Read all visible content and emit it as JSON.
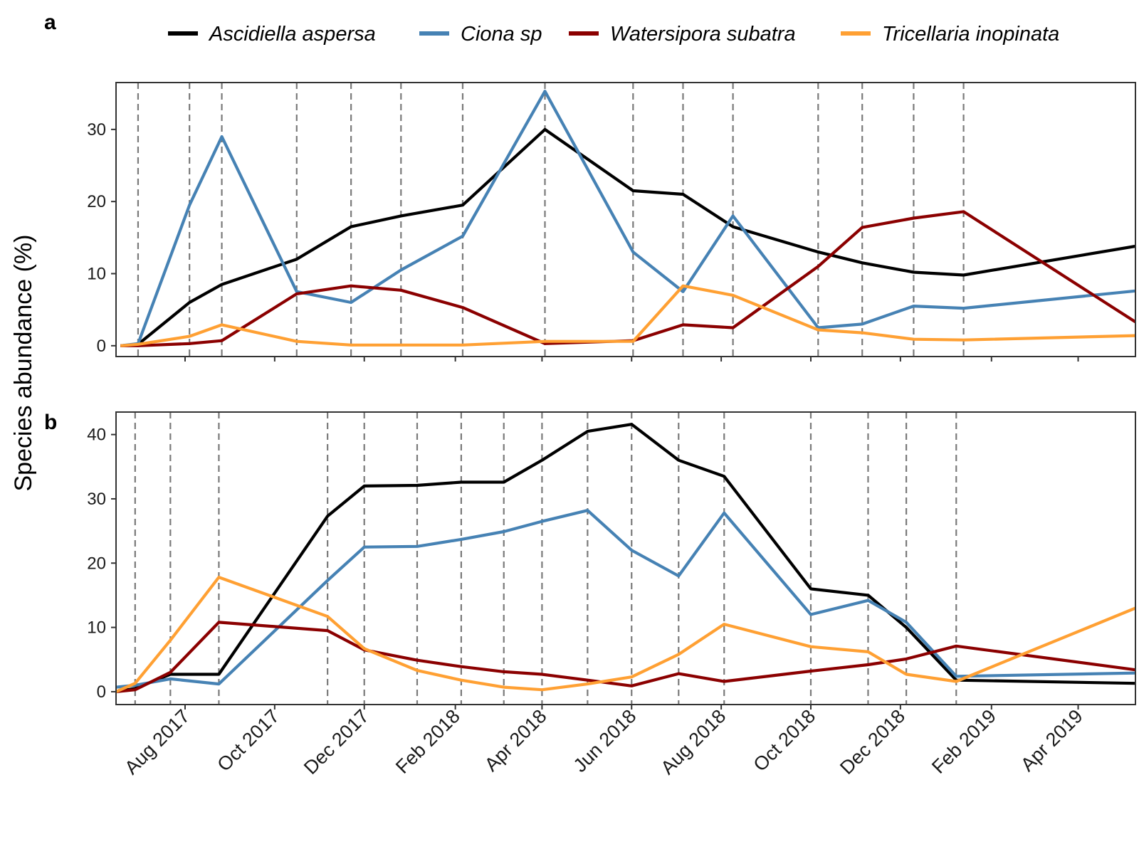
{
  "ylabel": "Species abundance (%)",
  "legend": [
    {
      "name": "Ascidiella aspersa",
      "color": "#000000"
    },
    {
      "name": "Ciona sp",
      "color": "#4682B4"
    },
    {
      "name": "Watersipora subatra",
      "color": "#8B0000"
    },
    {
      "name": "Tricellaria inopinata",
      "color": "#FFA033"
    }
  ],
  "x_ticks": [
    {
      "date": "2017-08-01",
      "label": "Aug 2017"
    },
    {
      "date": "2017-10-01",
      "label": "Oct 2017"
    },
    {
      "date": "2017-12-01",
      "label": "Dec 2017"
    },
    {
      "date": "2018-02-01",
      "label": "Feb 2018"
    },
    {
      "date": "2018-04-01",
      "label": "Apr 2018"
    },
    {
      "date": "2018-06-01",
      "label": "Jun 2018"
    },
    {
      "date": "2018-08-01",
      "label": "Aug 2018"
    },
    {
      "date": "2018-10-01",
      "label": "Oct 2018"
    },
    {
      "date": "2018-12-01",
      "label": "Dec 2018"
    },
    {
      "date": "2019-02-01",
      "label": "Feb 2019"
    },
    {
      "date": "2019-04-01",
      "label": "Apr 2019"
    }
  ],
  "chart_data": [
    {
      "panel": "a",
      "type": "line",
      "xlim": [
        "2017-06-15",
        "2019-05-10"
      ],
      "ylim": [
        -1.5,
        36.5
      ],
      "yticks": [
        0,
        10,
        20,
        30
      ],
      "grid": false,
      "legend_position": "top",
      "sampling_dates": [
        "2017-06-30",
        "2017-08-04",
        "2017-08-26",
        "2017-10-16",
        "2017-11-22",
        "2017-12-26",
        "2018-02-06",
        "2018-04-03",
        "2018-06-02",
        "2018-07-06",
        "2018-08-09",
        "2018-10-06",
        "2018-11-05",
        "2018-12-10",
        "2019-01-13"
      ],
      "series": [
        {
          "name": "Ascidiella aspersa",
          "color": "#000000",
          "x": [
            "2017-06-18",
            "2017-06-30",
            "2017-08-04",
            "2017-08-26",
            "2017-10-16",
            "2017-11-22",
            "2017-12-26",
            "2018-02-06",
            "2018-04-03",
            "2018-06-02",
            "2018-07-06",
            "2018-08-09",
            "2018-10-06",
            "2018-11-05",
            "2018-12-10",
            "2019-01-13",
            "2019-05-10"
          ],
          "y": [
            0,
            0.2,
            6,
            8.5,
            12,
            16.5,
            18,
            19.5,
            30,
            21.5,
            21,
            16.5,
            13,
            11.5,
            10.2,
            9.8,
            13.8
          ]
        },
        {
          "name": "Ciona sp",
          "color": "#4682B4",
          "x": [
            "2017-06-18",
            "2017-06-30",
            "2017-08-04",
            "2017-08-26",
            "2017-10-16",
            "2017-11-22",
            "2017-12-26",
            "2018-02-06",
            "2018-04-03",
            "2018-06-02",
            "2018-07-06",
            "2018-08-09",
            "2018-10-06",
            "2018-11-05",
            "2018-12-10",
            "2019-01-13",
            "2019-05-10"
          ],
          "y": [
            0,
            0.3,
            19.5,
            29,
            7.5,
            6,
            10.5,
            15.2,
            35.3,
            13,
            7.5,
            18,
            2.5,
            3,
            5.5,
            5.2,
            7.6
          ]
        },
        {
          "name": "Watersipora subatra",
          "color": "#8B0000",
          "x": [
            "2017-06-18",
            "2017-06-30",
            "2017-08-04",
            "2017-08-26",
            "2017-10-16",
            "2017-11-22",
            "2017-12-26",
            "2018-02-06",
            "2018-04-03",
            "2018-06-02",
            "2018-07-06",
            "2018-08-09",
            "2018-10-06",
            "2018-11-05",
            "2018-12-10",
            "2019-01-13",
            "2019-05-10"
          ],
          "y": [
            0,
            0,
            0.3,
            0.7,
            7.2,
            8.3,
            7.7,
            5.3,
            0.3,
            0.7,
            2.9,
            2.5,
            11,
            16.4,
            17.7,
            18.6,
            3.3
          ]
        },
        {
          "name": "Tricellaria inopinata",
          "color": "#FFA033",
          "x": [
            "2017-06-18",
            "2017-06-30",
            "2017-08-04",
            "2017-08-26",
            "2017-10-16",
            "2017-11-22",
            "2017-12-26",
            "2018-02-06",
            "2018-04-03",
            "2018-06-02",
            "2018-07-06",
            "2018-08-09",
            "2018-10-06",
            "2018-11-05",
            "2018-12-10",
            "2019-01-13",
            "2019-05-10"
          ],
          "y": [
            0,
            0.2,
            1.3,
            2.9,
            0.6,
            0.1,
            0.1,
            0.1,
            0.6,
            0.6,
            8.3,
            7,
            2.2,
            1.8,
            0.9,
            0.8,
            1.4
          ]
        }
      ]
    },
    {
      "panel": "b",
      "type": "line",
      "xlim": [
        "2017-06-15",
        "2019-05-10"
      ],
      "ylim": [
        -2,
        43.5
      ],
      "yticks": [
        0,
        10,
        20,
        30,
        40
      ],
      "grid": false,
      "legend_position": "top",
      "sampling_dates": [
        "2017-06-28",
        "2017-07-22",
        "2017-08-24",
        "2017-11-06",
        "2017-12-01",
        "2018-01-06",
        "2018-02-05",
        "2018-03-06",
        "2018-04-01",
        "2018-05-02",
        "2018-06-01",
        "2018-07-03",
        "2018-08-03",
        "2018-10-01",
        "2018-11-09",
        "2018-12-05",
        "2019-01-08"
      ],
      "series": [
        {
          "name": "Ascidiella aspersa",
          "color": "#000000",
          "x": [
            "2017-06-15",
            "2017-06-28",
            "2017-07-22",
            "2017-08-24",
            "2017-11-06",
            "2017-12-01",
            "2018-01-06",
            "2018-02-05",
            "2018-03-06",
            "2018-04-01",
            "2018-05-02",
            "2018-06-01",
            "2018-07-03",
            "2018-08-03",
            "2018-10-01",
            "2018-11-09",
            "2018-12-05",
            "2019-01-08",
            "2019-05-10"
          ],
          "y": [
            0,
            0.5,
            2.7,
            2.7,
            27.3,
            32,
            32.1,
            32.6,
            32.6,
            36,
            40.5,
            41.6,
            36,
            33.5,
            16,
            15,
            10,
            1.8,
            1.3
          ]
        },
        {
          "name": "Ciona sp",
          "color": "#4682B4",
          "x": [
            "2017-06-15",
            "2017-06-28",
            "2017-07-22",
            "2017-08-24",
            "2017-11-06",
            "2017-12-01",
            "2018-01-06",
            "2018-02-05",
            "2018-03-06",
            "2018-04-01",
            "2018-05-02",
            "2018-06-01",
            "2018-07-03",
            "2018-08-03",
            "2018-10-01",
            "2018-11-09",
            "2018-12-05",
            "2019-01-08",
            "2019-05-10"
          ],
          "y": [
            0.7,
            1,
            2,
            1.2,
            17.3,
            22.5,
            22.6,
            23.7,
            24.9,
            26.5,
            28.2,
            22,
            18,
            27.8,
            12,
            14.2,
            10.8,
            2.4,
            2.9
          ]
        },
        {
          "name": "Watersipora subatra",
          "color": "#8B0000",
          "x": [
            "2017-06-15",
            "2017-06-28",
            "2017-07-22",
            "2017-08-24",
            "2017-11-06",
            "2017-12-01",
            "2018-01-06",
            "2018-02-05",
            "2018-03-06",
            "2018-04-01",
            "2018-05-02",
            "2018-06-01",
            "2018-07-03",
            "2018-08-03",
            "2018-10-01",
            "2018-11-09",
            "2018-12-05",
            "2019-01-08",
            "2019-05-10"
          ],
          "y": [
            0,
            0.3,
            3,
            10.8,
            9.5,
            6.5,
            4.9,
            3.9,
            3.1,
            2.7,
            1.8,
            0.9,
            2.8,
            1.6,
            3.2,
            4.2,
            5.1,
            7.1,
            3.4
          ]
        },
        {
          "name": "Tricellaria inopinata",
          "color": "#FFA033",
          "x": [
            "2017-06-15",
            "2017-06-28",
            "2017-07-22",
            "2017-08-24",
            "2017-11-06",
            "2017-12-01",
            "2018-01-06",
            "2018-02-05",
            "2018-03-06",
            "2018-04-01",
            "2018-05-02",
            "2018-06-01",
            "2018-07-03",
            "2018-08-03",
            "2018-10-01",
            "2018-11-09",
            "2018-12-05",
            "2019-01-08",
            "2019-05-10"
          ],
          "y": [
            0,
            1.3,
            8,
            17.8,
            11.7,
            6.7,
            3.3,
            1.8,
            0.7,
            0.3,
            1.2,
            2.3,
            5.8,
            10.5,
            7,
            6.2,
            2.7,
            1.6,
            13
          ]
        }
      ]
    }
  ]
}
